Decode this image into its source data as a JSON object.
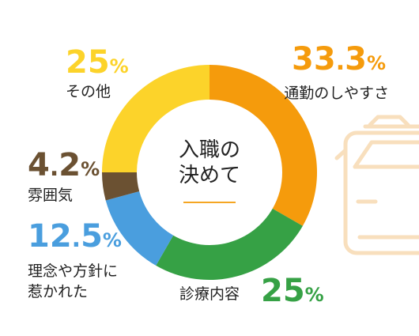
{
  "chart_data": {
    "type": "pie",
    "variant": "donut",
    "center_label": [
      "入職の",
      "決めて"
    ],
    "slices": [
      {
        "label": "通勤のしやすさ",
        "value": 33.3,
        "value_text": "33.3",
        "color": "#f59b0c"
      },
      {
        "label": "診療内容",
        "value": 25,
        "value_text": "25",
        "color": "#36a145"
      },
      {
        "label": "理念や方針に惹かれた",
        "label_lines": [
          "理念や方針に",
          "惹かれた"
        ],
        "value": 12.5,
        "value_text": "12.5",
        "color": "#4a9ede"
      },
      {
        "label": "雰囲気",
        "value": 4.2,
        "value_text": "4.2",
        "color": "#6b5132"
      },
      {
        "label": "その他",
        "value": 25,
        "value_text": "25",
        "color": "#fcd32a"
      }
    ],
    "unit": "%",
    "legend": "labels placed beside each slice"
  },
  "decoration": {
    "icon": "train-icon",
    "icon_color": "#f8dfbd",
    "center_rule_color": "#f5a623"
  }
}
